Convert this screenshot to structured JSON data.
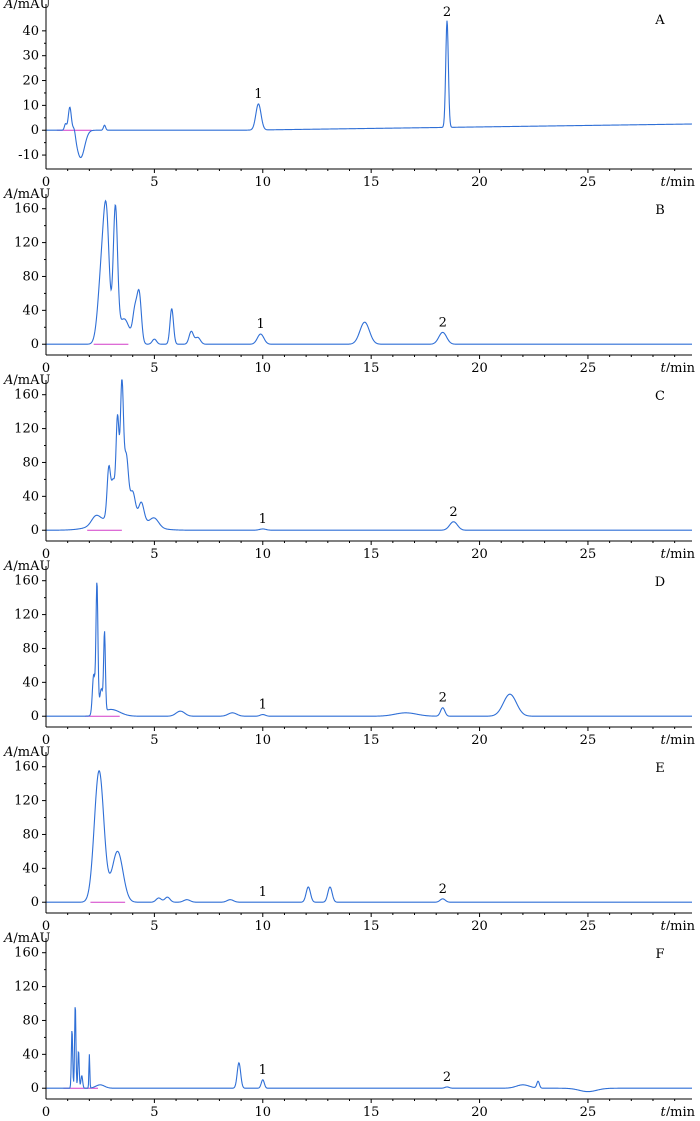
{
  "axis_label_y": "/mAU",
  "axis_label_y_symbol": "A",
  "axis_label_x": "/min",
  "axis_label_x_symbol": "t",
  "colors": {
    "trace": "#2f6fd6",
    "baseline": "#d23cc8",
    "axis": "#000000"
  },
  "chart_data": [
    {
      "type": "line",
      "panel_label": "A",
      "xlim": [
        0,
        29.8
      ],
      "ylim": [
        -14,
        50
      ],
      "y_ticks": [
        -10,
        0,
        10,
        20,
        30,
        40
      ],
      "x_ticks": [
        5,
        10,
        15,
        20,
        25
      ],
      "drift": {
        "start": 0,
        "end": 2.5,
        "from_x": 9,
        "to_x": 29.8
      },
      "peaks": [
        {
          "t": 0.9,
          "h": 2.5,
          "w": 0.05
        },
        {
          "t": 1.1,
          "h": 9.5,
          "w": 0.07
        },
        {
          "t": 1.3,
          "h": 3,
          "w": 0.06
        },
        {
          "t": 1.6,
          "h": -11,
          "w": 0.18
        },
        {
          "t": 2.7,
          "h": 2,
          "w": 0.05
        },
        {
          "t": 9.8,
          "h": 10.5,
          "w": 0.12
        },
        {
          "t": 18.5,
          "h": 43,
          "w": 0.06
        }
      ],
      "peak_labels": [
        {
          "t": 9.8,
          "label": "1"
        },
        {
          "t": 18.5,
          "label": "2"
        }
      ]
    },
    {
      "type": "line",
      "panel_label": "B",
      "xlim": [
        0,
        29.8
      ],
      "ylim": [
        -8,
        175
      ],
      "y_ticks": [
        0,
        40,
        80,
        120,
        160
      ],
      "x_ticks": [
        5,
        10,
        15,
        20,
        25
      ],
      "drift": {
        "start": 0,
        "end": 0,
        "from_x": 0,
        "to_x": 29.8
      },
      "peaks": [
        {
          "t": 2.6,
          "h": 95,
          "w": 0.18
        },
        {
          "t": 2.8,
          "h": 110,
          "w": 0.13
        },
        {
          "t": 3.2,
          "h": 155,
          "w": 0.1
        },
        {
          "t": 3.6,
          "h": 30,
          "w": 0.25
        },
        {
          "t": 4.1,
          "h": 35,
          "w": 0.1
        },
        {
          "t": 4.3,
          "h": 58,
          "w": 0.1
        },
        {
          "t": 5.0,
          "h": 6,
          "w": 0.1
        },
        {
          "t": 5.8,
          "h": 42,
          "w": 0.08
        },
        {
          "t": 6.7,
          "h": 15,
          "w": 0.1
        },
        {
          "t": 7.0,
          "h": 8,
          "w": 0.12
        },
        {
          "t": 9.9,
          "h": 12,
          "w": 0.15
        },
        {
          "t": 14.7,
          "h": 26,
          "w": 0.22
        },
        {
          "t": 18.3,
          "h": 14,
          "w": 0.18
        }
      ],
      "peak_labels": [
        {
          "t": 9.9,
          "label": "1"
        },
        {
          "t": 18.3,
          "label": "2"
        }
      ]
    },
    {
      "type": "line",
      "panel_label": "C",
      "xlim": [
        0,
        29.8
      ],
      "ylim": [
        -8,
        175
      ],
      "y_ticks": [
        0,
        40,
        80,
        120,
        160
      ],
      "x_ticks": [
        5,
        10,
        15,
        20,
        25
      ],
      "drift": {
        "start": 0,
        "end": 0,
        "from_x": 0,
        "to_x": 29.8
      },
      "peaks": [
        {
          "t": 2.3,
          "h": 10,
          "w": 0.2
        },
        {
          "t": 2.9,
          "h": 60,
          "w": 0.08
        },
        {
          "t": 3.1,
          "h": 40,
          "w": 0.08
        },
        {
          "t": 3.3,
          "h": 115,
          "w": 0.07
        },
        {
          "t": 3.5,
          "h": 150,
          "w": 0.07
        },
        {
          "t": 3.7,
          "h": 70,
          "w": 0.1
        },
        {
          "t": 4.0,
          "h": 30,
          "w": 0.12
        },
        {
          "t": 4.4,
          "h": 22,
          "w": 0.12
        },
        {
          "t": 5.0,
          "h": 10,
          "w": 0.2
        },
        {
          "t": 3.5,
          "h": 18,
          "w": 0.9
        },
        {
          "t": 10.0,
          "h": 1.5,
          "w": 0.15
        },
        {
          "t": 18.8,
          "h": 10,
          "w": 0.18
        }
      ],
      "peak_labels": [
        {
          "t": 10.0,
          "label": "1"
        },
        {
          "t": 18.8,
          "label": "2"
        }
      ]
    },
    {
      "type": "line",
      "panel_label": "D",
      "xlim": [
        0,
        29.8
      ],
      "ylim": [
        -8,
        175
      ],
      "y_ticks": [
        0,
        40,
        80,
        120,
        160
      ],
      "x_ticks": [
        5,
        10,
        15,
        20,
        25
      ],
      "drift": {
        "start": 0,
        "end": 0,
        "from_x": 0,
        "to_x": 29.8
      },
      "peaks": [
        {
          "t": 2.2,
          "h": 48,
          "w": 0.06
        },
        {
          "t": 2.35,
          "h": 155,
          "w": 0.045
        },
        {
          "t": 2.55,
          "h": 28,
          "w": 0.07
        },
        {
          "t": 2.7,
          "h": 92,
          "w": 0.04
        },
        {
          "t": 3.0,
          "h": 8,
          "w": 0.4
        },
        {
          "t": 6.2,
          "h": 6,
          "w": 0.2
        },
        {
          "t": 8.6,
          "h": 4,
          "w": 0.2
        },
        {
          "t": 10.0,
          "h": 2,
          "w": 0.12
        },
        {
          "t": 16.6,
          "h": 4,
          "w": 0.5
        },
        {
          "t": 18.3,
          "h": 10,
          "w": 0.1
        },
        {
          "t": 21.4,
          "h": 26,
          "w": 0.3
        }
      ],
      "peak_labels": [
        {
          "t": 10.0,
          "label": "1"
        },
        {
          "t": 18.3,
          "label": "2"
        }
      ]
    },
    {
      "type": "line",
      "panel_label": "E",
      "xlim": [
        0,
        29.8
      ],
      "ylim": [
        -8,
        175
      ],
      "y_ticks": [
        0,
        40,
        80,
        120,
        160
      ],
      "x_ticks": [
        5,
        10,
        15,
        20,
        25
      ],
      "drift": {
        "start": 0,
        "end": 0,
        "from_x": 0,
        "to_x": 29.8
      },
      "peaks": [
        {
          "t": 2.45,
          "h": 155,
          "w": 0.22
        },
        {
          "t": 3.3,
          "h": 60,
          "w": 0.25
        },
        {
          "t": 5.2,
          "h": 5,
          "w": 0.12
        },
        {
          "t": 5.6,
          "h": 6,
          "w": 0.12
        },
        {
          "t": 6.5,
          "h": 3,
          "w": 0.15
        },
        {
          "t": 8.5,
          "h": 3,
          "w": 0.15
        },
        {
          "t": 12.1,
          "h": 18,
          "w": 0.1
        },
        {
          "t": 13.1,
          "h": 18,
          "w": 0.1
        },
        {
          "t": 18.3,
          "h": 4,
          "w": 0.12
        }
      ],
      "peak_labels": [
        {
          "t": 10.0,
          "label": "1"
        },
        {
          "t": 18.3,
          "label": "2"
        }
      ]
    },
    {
      "type": "line",
      "panel_label": "F",
      "xlim": [
        0,
        29.8
      ],
      "ylim": [
        -8,
        175
      ],
      "y_ticks": [
        0,
        40,
        80,
        120,
        160
      ],
      "x_ticks": [
        5,
        10,
        15,
        20,
        25
      ],
      "drift": {
        "start": 0,
        "end": 0,
        "from_x": 0,
        "to_x": 29.8
      },
      "peaks": [
        {
          "t": 1.2,
          "h": 70,
          "w": 0.03
        },
        {
          "t": 1.35,
          "h": 100,
          "w": 0.03
        },
        {
          "t": 1.5,
          "h": 45,
          "w": 0.03
        },
        {
          "t": 1.65,
          "h": 15,
          "w": 0.04
        },
        {
          "t": 2.0,
          "h": 40,
          "w": 0.02
        },
        {
          "t": 2.5,
          "h": 4,
          "w": 0.2
        },
        {
          "t": 8.9,
          "h": 30,
          "w": 0.08
        },
        {
          "t": 10.0,
          "h": 10,
          "w": 0.07
        },
        {
          "t": 18.5,
          "h": 1.5,
          "w": 0.1
        },
        {
          "t": 22.0,
          "h": 4,
          "w": 0.3
        },
        {
          "t": 22.7,
          "h": 8,
          "w": 0.06
        },
        {
          "t": 25.0,
          "h": -4,
          "w": 0.4
        }
      ],
      "peak_labels": [
        {
          "t": 10.0,
          "label": "1"
        },
        {
          "t": 18.5,
          "label": "2"
        }
      ]
    }
  ]
}
